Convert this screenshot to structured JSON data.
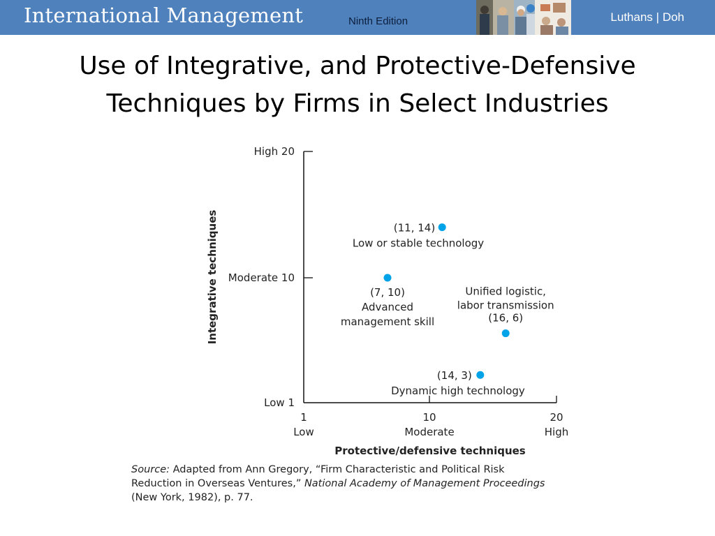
{
  "header": {
    "book_title_part1": "International",
    "book_title_part2": "Management",
    "edition": "Ninth Edition",
    "author1": "Luthans",
    "separator": "|",
    "author2": "Doh",
    "accent_color": "#4f81bd"
  },
  "slide": {
    "title_line1": "Use of Integrative, and Protective-Defensive",
    "title_line2": "Techniques by Firms in Select Industries"
  },
  "chart_data": {
    "type": "scatter",
    "xlabel": "Protective/defensive techniques",
    "ylabel": "Integrative techniques",
    "xlim": [
      1,
      20
    ],
    "ylim": [
      1,
      20
    ],
    "x_ticks": [
      {
        "value": 1,
        "label": "1",
        "sublabel": "Low"
      },
      {
        "value": 10,
        "label": "10",
        "sublabel": "Moderate"
      },
      {
        "value": 20,
        "label": "20",
        "sublabel": "High"
      }
    ],
    "y_ticks": [
      {
        "value": 20,
        "label": "High 20"
      },
      {
        "value": 10,
        "label": "Moderate 10"
      },
      {
        "value": 1,
        "label": "Low 1"
      }
    ],
    "point_color": "#00a2e8",
    "points": [
      {
        "x": 11,
        "y": 14,
        "coord_label": "(11, 14)",
        "desc": [
          "Low or stable technology"
        ]
      },
      {
        "x": 7,
        "y": 10,
        "coord_label": "(7, 10)",
        "desc": [
          "Advanced",
          "management skill"
        ]
      },
      {
        "x": 16,
        "y": 6,
        "coord_label": "(16, 6)",
        "desc": [
          "Unified logistic,",
          "labor transmission"
        ]
      },
      {
        "x": 14,
        "y": 3,
        "coord_label": "(14, 3)",
        "desc": [
          "Dynamic high technology"
        ]
      }
    ],
    "grid": false
  },
  "source": {
    "label": "Source:",
    "line1_rest": " Adapted from Ann Gregory, “Firm Characteristic and Political Risk",
    "line2_a": "Reduction in Overseas Ventures,” ",
    "line2_b": "National Academy of Management Proceedings",
    "line3": "(New York, 1982), p. 77."
  }
}
